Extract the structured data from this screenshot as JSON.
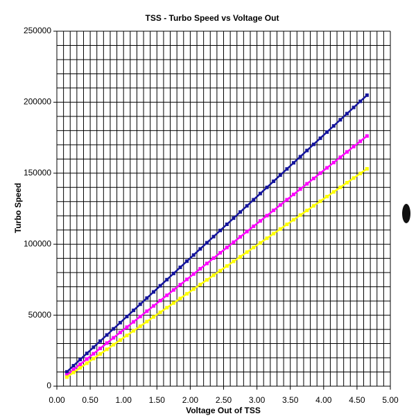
{
  "chart_data": {
    "type": "line",
    "title": "TSS - Turbo Speed vs Voltage Out",
    "x_label": "Voltage Out of TSS",
    "y_label": "Turbo Speed",
    "x": [
      0.15,
      0.25,
      0.35,
      0.45,
      0.55,
      0.65,
      0.75,
      0.85,
      0.95,
      1.05,
      1.15,
      1.25,
      1.35,
      1.45,
      1.55,
      1.65,
      1.75,
      1.85,
      1.95,
      2.05,
      2.15,
      2.25,
      2.35,
      2.45,
      2.55,
      2.65,
      2.75,
      2.85,
      2.95,
      3.05,
      3.15,
      3.25,
      3.35,
      3.45,
      3.55,
      3.65,
      3.75,
      3.85,
      3.95,
      4.05,
      4.15,
      4.25,
      4.35,
      4.45,
      4.55,
      4.65
    ],
    "series": [
      {
        "color": "#14149c",
        "values": [
          10095,
          14425,
          18755,
          23085,
          27415,
          31745,
          36075,
          40405,
          44735,
          49065,
          53395,
          57725,
          62055,
          66385,
          70715,
          75045,
          79375,
          83705,
          88035,
          92365,
          96695,
          101025,
          105355,
          109685,
          114015,
          118345,
          122675,
          127005,
          131335,
          135665,
          139995,
          144325,
          148655,
          152985,
          157315,
          161645,
          165975,
          170305,
          174635,
          178965,
          183295,
          187625,
          191955,
          196285,
          200615,
          204945
        ]
      },
      {
        "color": "#ff00ff",
        "values": [
          7910,
          11650,
          15390,
          19130,
          22870,
          26610,
          30350,
          34090,
          37830,
          41570,
          45310,
          49050,
          52790,
          56530,
          60270,
          64010,
          67750,
          71490,
          75230,
          78970,
          82710,
          86450,
          90190,
          93930,
          97670,
          101410,
          105150,
          108890,
          112630,
          116370,
          120110,
          123850,
          127590,
          131330,
          135070,
          138810,
          142550,
          146290,
          150030,
          153770,
          157510,
          161250,
          164990,
          168730,
          172470,
          176210
        ]
      },
      {
        "color": "#ffff00",
        "values": [
          6390,
          9650,
          12910,
          16170,
          19430,
          22690,
          25950,
          29210,
          32470,
          35730,
          38990,
          42250,
          45510,
          48770,
          52030,
          55290,
          58550,
          61810,
          65070,
          68330,
          71590,
          74850,
          78110,
          81370,
          84630,
          87890,
          91150,
          94410,
          97670,
          100930,
          104190,
          107450,
          110710,
          113970,
          117230,
          120490,
          123750,
          127010,
          130270,
          133530,
          136790,
          140050,
          143310,
          146570,
          149830,
          153090
        ]
      }
    ],
    "xlim": [
      0,
      5
    ],
    "ylim": [
      0,
      250000
    ],
    "xticks": [
      {
        "value": 0,
        "label": "0.00"
      },
      {
        "value": 0.5,
        "label": "0.50"
      },
      {
        "value": 1,
        "label": "1.00"
      },
      {
        "value": 1.5,
        "label": "1.50"
      },
      {
        "value": 2,
        "label": "2.00"
      },
      {
        "value": 2.5,
        "label": "2.50"
      },
      {
        "value": 3,
        "label": "3.00"
      },
      {
        "value": 3.5,
        "label": "3.50"
      },
      {
        "value": 4,
        "label": "4.00"
      },
      {
        "value": 4.5,
        "label": "4.50"
      },
      {
        "value": 5,
        "label": "5.00"
      }
    ],
    "yticks": [
      0,
      50000,
      100000,
      150000,
      200000,
      250000
    ],
    "grid": {
      "x_step": 0.1,
      "y_step": 10000
    }
  }
}
